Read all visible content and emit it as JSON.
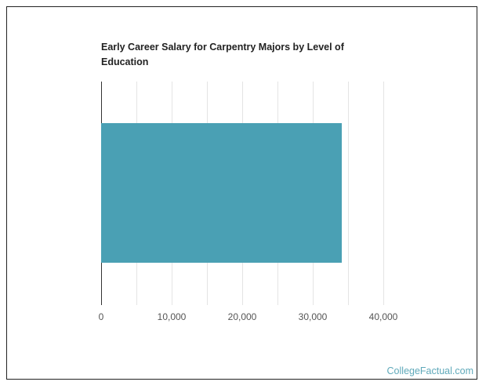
{
  "chart_data": {
    "type": "bar",
    "orientation": "horizontal",
    "title": "Early Career Salary for Carpentry Majors by Level of Education",
    "categories": [
      ""
    ],
    "values": [
      34100
    ],
    "xlabel": "",
    "ylabel": "",
    "xlim": [
      0,
      40000
    ],
    "xticks": [
      0,
      10000,
      20000,
      30000,
      40000
    ],
    "xtick_labels": [
      "0",
      "10,000",
      "20,000",
      "30,000",
      "40,000"
    ],
    "minor_gridlines": [
      5000,
      15000,
      25000,
      35000
    ],
    "grid": true,
    "legend": null,
    "bar_color": "#4aa0b4"
  },
  "branding": {
    "text": "CollegeFactual.com",
    "color": "#5fa9ba"
  }
}
